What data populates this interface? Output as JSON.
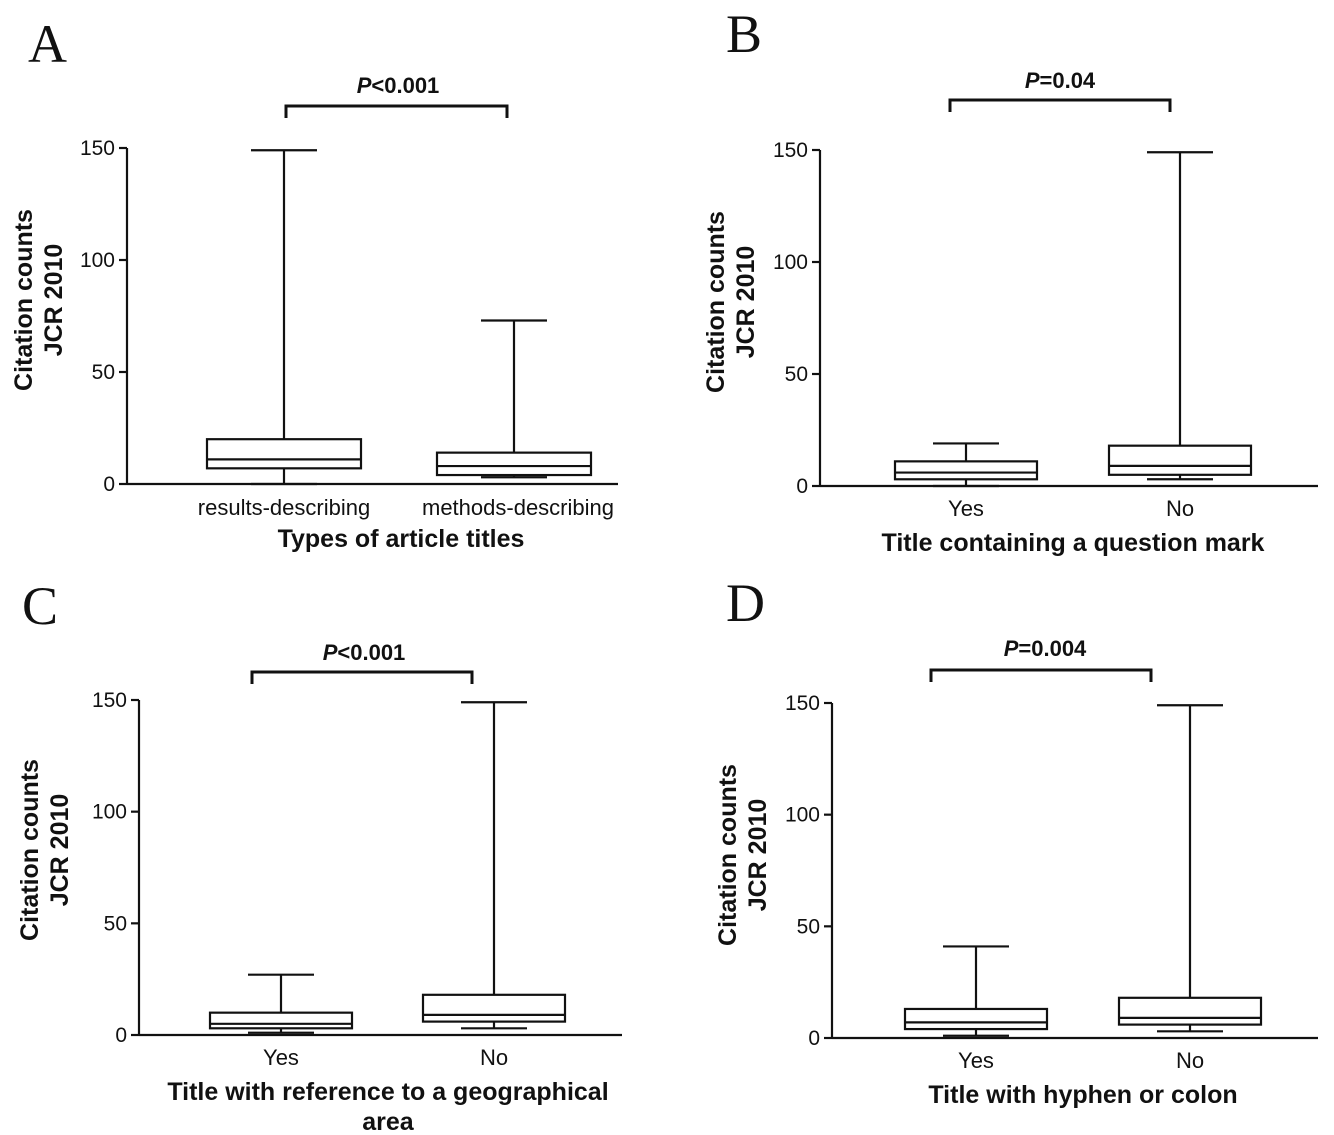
{
  "chart_data": [
    {
      "panel": "A",
      "type": "box",
      "categories": [
        "results-describing",
        "methods-describing"
      ],
      "boxes": [
        {
          "min": 0,
          "q1": 7,
          "median": 11,
          "q3": 20,
          "max": 149
        },
        {
          "min": 3,
          "q1": 4,
          "median": 8,
          "q3": 14,
          "max": 73
        }
      ],
      "xlabel": "Types of article titles",
      "ylabel_line1": "Citation counts",
      "ylabel_line2": "JCR 2010",
      "ylim": [
        0,
        150
      ],
      "yticks": [
        "0",
        "50",
        "100",
        "150"
      ],
      "pvalue_prefix": "P",
      "pvalue_rest": "<0.001"
    },
    {
      "panel": "B",
      "type": "box",
      "categories": [
        "Yes",
        "No"
      ],
      "boxes": [
        {
          "min": 0,
          "q1": 3,
          "median": 6,
          "q3": 11,
          "max": 19
        },
        {
          "min": 3,
          "q1": 5,
          "median": 9,
          "q3": 18,
          "max": 149
        }
      ],
      "xlabel": "Title containing a question mark",
      "ylabel_line1": "Citation counts",
      "ylabel_line2": "JCR 2010",
      "ylim": [
        0,
        150
      ],
      "yticks": [
        "0",
        "50",
        "100",
        "150"
      ],
      "pvalue_prefix": "P",
      "pvalue_rest": "=0.04"
    },
    {
      "panel": "C",
      "type": "box",
      "categories": [
        "Yes",
        "No"
      ],
      "boxes": [
        {
          "min": 1,
          "q1": 3,
          "median": 5,
          "q3": 10,
          "max": 27
        },
        {
          "min": 3,
          "q1": 6,
          "median": 9,
          "q3": 18,
          "max": 149
        }
      ],
      "xlabel_line1": "Title with reference to a geographical",
      "xlabel_line2": "area",
      "ylabel_line1": "Citation counts",
      "ylabel_line2": "JCR 2010",
      "ylim": [
        0,
        150
      ],
      "yticks": [
        "0",
        "50",
        "100",
        "150"
      ],
      "pvalue_prefix": "P",
      "pvalue_rest": "<0.001"
    },
    {
      "panel": "D",
      "type": "box",
      "categories": [
        "Yes",
        "No"
      ],
      "boxes": [
        {
          "min": 1,
          "q1": 4,
          "median": 7,
          "q3": 13,
          "max": 41
        },
        {
          "min": 3,
          "q1": 6,
          "median": 9,
          "q3": 18,
          "max": 149
        }
      ],
      "xlabel": "Title with hyphen or colon",
      "ylabel_line1": "Citation counts",
      "ylabel_line2": "JCR 2010",
      "ylim": [
        0,
        150
      ],
      "yticks": [
        "0",
        "50",
        "100",
        "150"
      ],
      "pvalue_prefix": "P",
      "pvalue_rest": "=0.004"
    }
  ]
}
